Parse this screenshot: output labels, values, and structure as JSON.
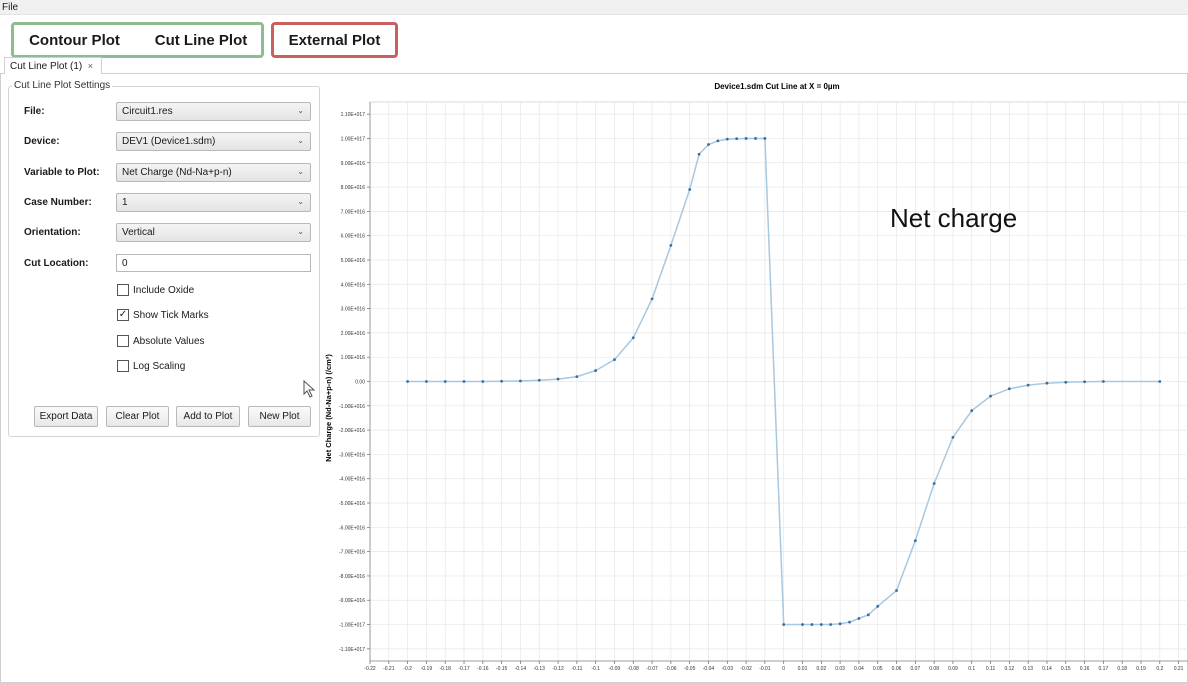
{
  "menu": {
    "file": "File"
  },
  "toolbar": {
    "contour_plot": "Contour Plot",
    "cut_line_plot": "Cut Line Plot",
    "external_plot": "External Plot"
  },
  "tab": {
    "label": "Cut Line Plot (1)",
    "close": "×"
  },
  "settings": {
    "title": "Cut Line Plot Settings",
    "file": {
      "label": "File:",
      "value": "Circuit1.res"
    },
    "device": {
      "label": "Device:",
      "value": "DEV1 (Device1.sdm)"
    },
    "variable": {
      "label": "Variable to Plot:",
      "value": "Net Charge (Nd-Na+p-n)"
    },
    "case_number": {
      "label": "Case Number:",
      "value": "1"
    },
    "orientation": {
      "label": "Orientation:",
      "value": "Vertical"
    },
    "cut_location": {
      "label": "Cut Location:",
      "value": "0"
    },
    "include_oxide": {
      "label": "Include Oxide",
      "checked": false
    },
    "show_tick_marks": {
      "label": "Show Tick Marks",
      "checked": true
    },
    "absolute_values": {
      "label": "Absolute Values",
      "checked": false
    },
    "log_scaling": {
      "label": "Log Scaling",
      "checked": false
    },
    "buttons": {
      "export": "Export Data",
      "clear": "Clear Plot",
      "add": "Add to Plot",
      "new": "New Plot"
    }
  },
  "annotation": "Net charge",
  "chart_data": {
    "type": "line",
    "title": "Device1.sdm Cut Line at X = 0µm",
    "xlabel": "",
    "ylabel": "Net Charge (Nd-Na+p-n) (/cm³)",
    "xlim": [
      -0.22,
      0.215
    ],
    "ylim": [
      -1.15e+17,
      1.15e+17
    ],
    "grid": true,
    "line_color": "#a8c8e0",
    "marker_color": "#3b6e9c",
    "x_ticks": [
      "-0.22",
      "-0.21",
      "-0.2",
      "-0.19",
      "-0.18",
      "-0.17",
      "-0.16",
      "-0.15",
      "-0.14",
      "-0.13",
      "-0.12",
      "-0.11",
      "-0.1",
      "-0.09",
      "-0.08",
      "-0.07",
      "-0.06",
      "-0.05",
      "-0.04",
      "-0.03",
      "-0.02",
      "-0.01",
      "0",
      "0.01",
      "0.02",
      "0.03",
      "0.04",
      "0.05",
      "0.06",
      "0.07",
      "0.08",
      "0.09",
      "0.1",
      "0.11",
      "0.12",
      "0.13",
      "0.14",
      "0.15",
      "0.16",
      "0.17",
      "0.18",
      "0.19",
      "0.2",
      "0.21"
    ],
    "y_ticks": [
      "1.10E+017",
      "1.00E+017",
      "9.00E+016",
      "8.00E+016",
      "7.00E+016",
      "6.00E+016",
      "5.00E+016",
      "4.00E+016",
      "3.00E+016",
      "2.00E+016",
      "1.00E+016",
      "0.00",
      "-1.00E+016",
      "-2.00E+016",
      "-3.00E+016",
      "-4.00E+016",
      "-5.00E+016",
      "-6.00E+016",
      "-7.00E+016",
      "-8.00E+016",
      "-9.00E+016",
      "-1.00E+017",
      "-1.10E+017"
    ],
    "series": [
      {
        "x": [
          -0.2,
          -0.19,
          -0.18,
          -0.17,
          -0.16,
          -0.15,
          -0.14,
          -0.13,
          -0.12,
          -0.11,
          -0.1,
          -0.09,
          -0.08,
          -0.07,
          -0.06,
          -0.05,
          -0.045,
          -0.04,
          -0.035,
          -0.03,
          -0.025,
          -0.02,
          -0.015,
          -0.01,
          0,
          0.01,
          0.015,
          0.02,
          0.025,
          0.03,
          0.035,
          0.04,
          0.045,
          0.05,
          0.06,
          0.07,
          0.08,
          0.09,
          0.1,
          0.11,
          0.12,
          0.13,
          0.14,
          0.15,
          0.16,
          0.17,
          0.2
        ],
        "y": [
          0,
          0,
          0,
          0,
          0,
          100000000000000.0,
          200000000000000.0,
          500000000000000.0,
          1000000000000000.0,
          2000000000000000.0,
          4500000000000000.0,
          9000000000000000.0,
          1.8e+16,
          3.4e+16,
          5.6e+16,
          7.9e+16,
          9.35e+16,
          9.75e+16,
          9.9e+16,
          9.97e+16,
          9.99e+16,
          1e+17,
          1e+17,
          1e+17,
          -1e+17,
          -1e+17,
          -1e+17,
          -1e+17,
          -1e+17,
          -9.97e+16,
          -9.9e+16,
          -9.75e+16,
          -9.6e+16,
          -9.25e+16,
          -8.6e+16,
          -6.55e+16,
          -4.2e+16,
          -2.3e+16,
          -1.2e+16,
          -6000000000000000.0,
          -3000000000000000.0,
          -1500000000000000.0,
          -700000000000000.0,
          -300000000000000.0,
          -100000000000000.0,
          0,
          0
        ]
      }
    ]
  }
}
